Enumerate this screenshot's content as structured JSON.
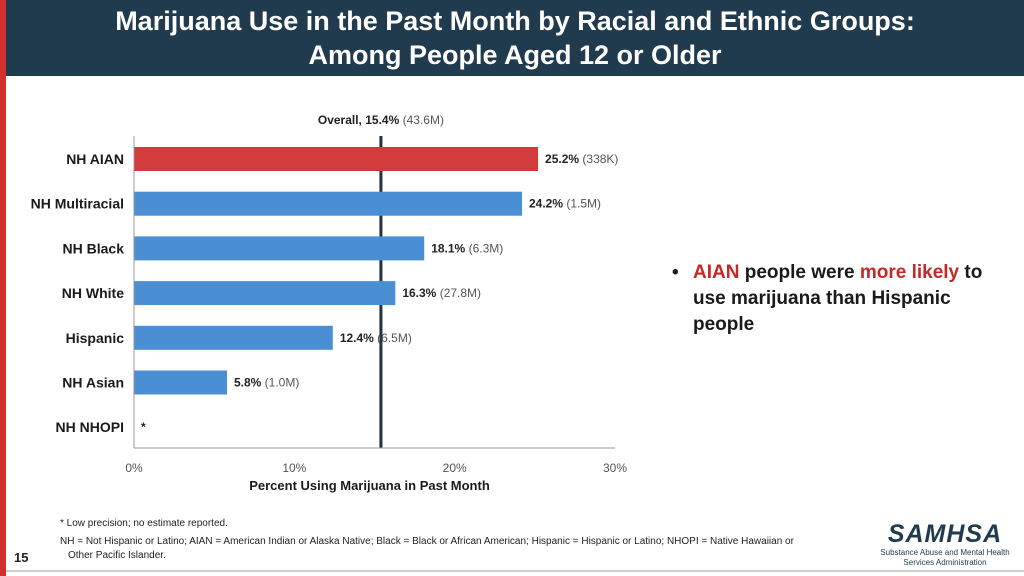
{
  "header": {
    "title_line1": "Marijuana Use in the Past Month by Racial and Ethnic Groups:",
    "title_line2": "Among People Aged 12 or Older"
  },
  "chart_data": {
    "type": "bar",
    "orientation": "horizontal",
    "categories": [
      "NH AIAN",
      "NH Multiracial",
      "NH Black",
      "NH White",
      "Hispanic",
      "NH Asian",
      "NH NHOPI"
    ],
    "values": [
      25.2,
      24.2,
      18.1,
      16.3,
      12.4,
      5.8,
      null
    ],
    "value_labels": [
      "25.2%",
      "24.2%",
      "18.1%",
      "16.3%",
      "12.4%",
      "5.8%",
      "*"
    ],
    "counts": [
      "(338K)",
      "(1.5M)",
      "(6.3M)",
      "(27.8M)",
      "(6.5M)",
      "(1.0M)",
      ""
    ],
    "bar_colors": [
      "#d13b3b",
      "#4a8fd4",
      "#4a8fd4",
      "#4a8fd4",
      "#4a8fd4",
      "#4a8fd4",
      "#4a8fd4"
    ],
    "xlabel": "Percent Using Marijuana in Past Month",
    "xlim": [
      0,
      30
    ],
    "xticks": [
      0,
      10,
      20,
      30
    ],
    "xtick_labels": [
      "0%",
      "10%",
      "20%",
      "30%"
    ],
    "reference_line": {
      "value": 15.4,
      "label": "Overall, 15.4%",
      "count": "(43.6M)"
    }
  },
  "bullet": {
    "part1": "AIAN",
    "part2": " people were ",
    "part3": "more likely",
    "part4": " to use marijuana than Hispanic people"
  },
  "footnotes": {
    "line1": "* Low precision; no estimate reported.",
    "line2": "NH = Not Hispanic or Latino; AIAN = American Indian or Alaska Native; Black = Black or African American; Hispanic = Hispanic or Latino; NHOPI = Native Hawaiian or",
    "line3": "Other Pacific Islander."
  },
  "page_number": "15",
  "logo": {
    "name": "SAMHSA",
    "sub1": "Substance Abuse and Mental Health",
    "sub2": "Services Administration"
  }
}
